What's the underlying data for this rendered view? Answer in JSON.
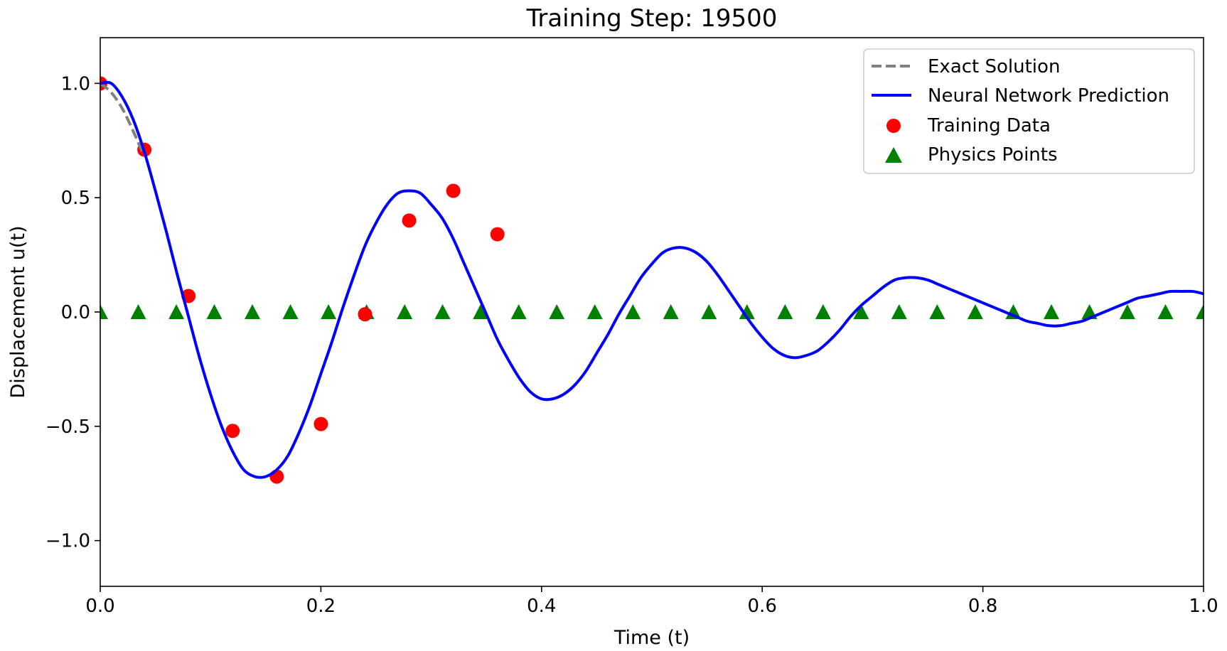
{
  "chart_data": {
    "type": "line",
    "title": "Training Step: 19500",
    "xlabel": "Time (t)",
    "ylabel": "Displacement u(t)",
    "xlim": [
      0.0,
      1.0
    ],
    "ylim": [
      -1.2,
      1.2
    ],
    "xticks": [
      0.0,
      0.2,
      0.4,
      0.6,
      0.8,
      1.0
    ],
    "xtick_labels": [
      "0.0",
      "0.2",
      "0.4",
      "0.6",
      "0.8",
      "1.0"
    ],
    "yticks": [
      -1.0,
      -0.5,
      0.0,
      0.5,
      1.0
    ],
    "ytick_labels": [
      "−1.0",
      "−0.5",
      "0.0",
      "0.5",
      "1.0"
    ],
    "grid": false,
    "legend_position": "top-right",
    "series": [
      {
        "name": "Exact Solution",
        "kind": "line",
        "style": "dashed",
        "color": "#808080",
        "x": [
          0.0,
          0.01,
          0.02,
          0.03,
          0.04
        ],
        "y": [
          1.0,
          0.96,
          0.89,
          0.79,
          0.68
        ]
      },
      {
        "name": "Neural Network Prediction",
        "kind": "line",
        "style": "solid",
        "color": "#0000ff",
        "x": [
          0.0,
          0.01,
          0.02,
          0.03,
          0.04,
          0.05,
          0.06,
          0.07,
          0.08,
          0.09,
          0.1,
          0.11,
          0.12,
          0.13,
          0.14,
          0.15,
          0.16,
          0.17,
          0.18,
          0.19,
          0.2,
          0.21,
          0.22,
          0.23,
          0.24,
          0.25,
          0.26,
          0.27,
          0.28,
          0.29,
          0.3,
          0.31,
          0.32,
          0.33,
          0.34,
          0.35,
          0.36,
          0.37,
          0.38,
          0.39,
          0.4,
          0.41,
          0.42,
          0.43,
          0.44,
          0.45,
          0.46,
          0.47,
          0.48,
          0.49,
          0.5,
          0.51,
          0.52,
          0.53,
          0.54,
          0.55,
          0.56,
          0.57,
          0.58,
          0.59,
          0.6,
          0.61,
          0.62,
          0.63,
          0.64,
          0.65,
          0.66,
          0.67,
          0.68,
          0.69,
          0.7,
          0.71,
          0.72,
          0.73,
          0.74,
          0.75,
          0.76,
          0.77,
          0.78,
          0.79,
          0.8,
          0.81,
          0.82,
          0.83,
          0.84,
          0.85,
          0.86,
          0.87,
          0.88,
          0.89,
          0.9,
          0.91,
          0.92,
          0.93,
          0.94,
          0.95,
          0.96,
          0.97,
          0.98,
          0.99,
          1.0
        ],
        "y": [
          1.0,
          1.0,
          0.94,
          0.84,
          0.7,
          0.53,
          0.35,
          0.16,
          -0.02,
          -0.2,
          -0.36,
          -0.5,
          -0.61,
          -0.69,
          -0.72,
          -0.72,
          -0.69,
          -0.63,
          -0.53,
          -0.41,
          -0.27,
          -0.13,
          0.02,
          0.16,
          0.29,
          0.39,
          0.47,
          0.52,
          0.53,
          0.52,
          0.47,
          0.41,
          0.32,
          0.21,
          0.1,
          -0.01,
          -0.12,
          -0.21,
          -0.29,
          -0.35,
          -0.38,
          -0.38,
          -0.36,
          -0.32,
          -0.26,
          -0.18,
          -0.1,
          -0.01,
          0.07,
          0.15,
          0.21,
          0.26,
          0.28,
          0.28,
          0.26,
          0.22,
          0.16,
          0.09,
          0.02,
          -0.05,
          -0.11,
          -0.16,
          -0.19,
          -0.2,
          -0.19,
          -0.17,
          -0.13,
          -0.08,
          -0.02,
          0.03,
          0.07,
          0.11,
          0.14,
          0.15,
          0.15,
          0.14,
          0.12,
          0.1,
          0.08,
          0.06,
          0.04,
          0.02,
          0.0,
          -0.02,
          -0.04,
          -0.05,
          -0.06,
          -0.06,
          -0.05,
          -0.04,
          -0.02,
          0.0,
          0.02,
          0.04,
          0.06,
          0.07,
          0.08,
          0.09,
          0.09,
          0.09,
          0.08
        ]
      },
      {
        "name": "Training Data",
        "kind": "scatter",
        "marker": "circle",
        "color": "#ff0000",
        "x": [
          0.0,
          0.04,
          0.08,
          0.12,
          0.16,
          0.2,
          0.24,
          0.28,
          0.32,
          0.36
        ],
        "y": [
          1.0,
          0.71,
          0.07,
          -0.52,
          -0.72,
          -0.49,
          -0.01,
          0.4,
          0.53,
          0.34
        ]
      },
      {
        "name": "Physics Points",
        "kind": "scatter",
        "marker": "triangle",
        "color": "#008000",
        "x": [
          0.0,
          0.0345,
          0.069,
          0.1034,
          0.1379,
          0.1724,
          0.2069,
          0.2414,
          0.2759,
          0.3103,
          0.3448,
          0.3793,
          0.4138,
          0.4483,
          0.4828,
          0.5172,
          0.5517,
          0.5862,
          0.6207,
          0.6552,
          0.6897,
          0.7241,
          0.7586,
          0.7931,
          0.8276,
          0.8621,
          0.8966,
          0.931,
          0.9655,
          1.0
        ],
        "y": [
          0,
          0,
          0,
          0,
          0,
          0,
          0,
          0,
          0,
          0,
          0,
          0,
          0,
          0,
          0,
          0,
          0,
          0,
          0,
          0,
          0,
          0,
          0,
          0,
          0,
          0,
          0,
          0,
          0,
          0
        ]
      }
    ]
  }
}
